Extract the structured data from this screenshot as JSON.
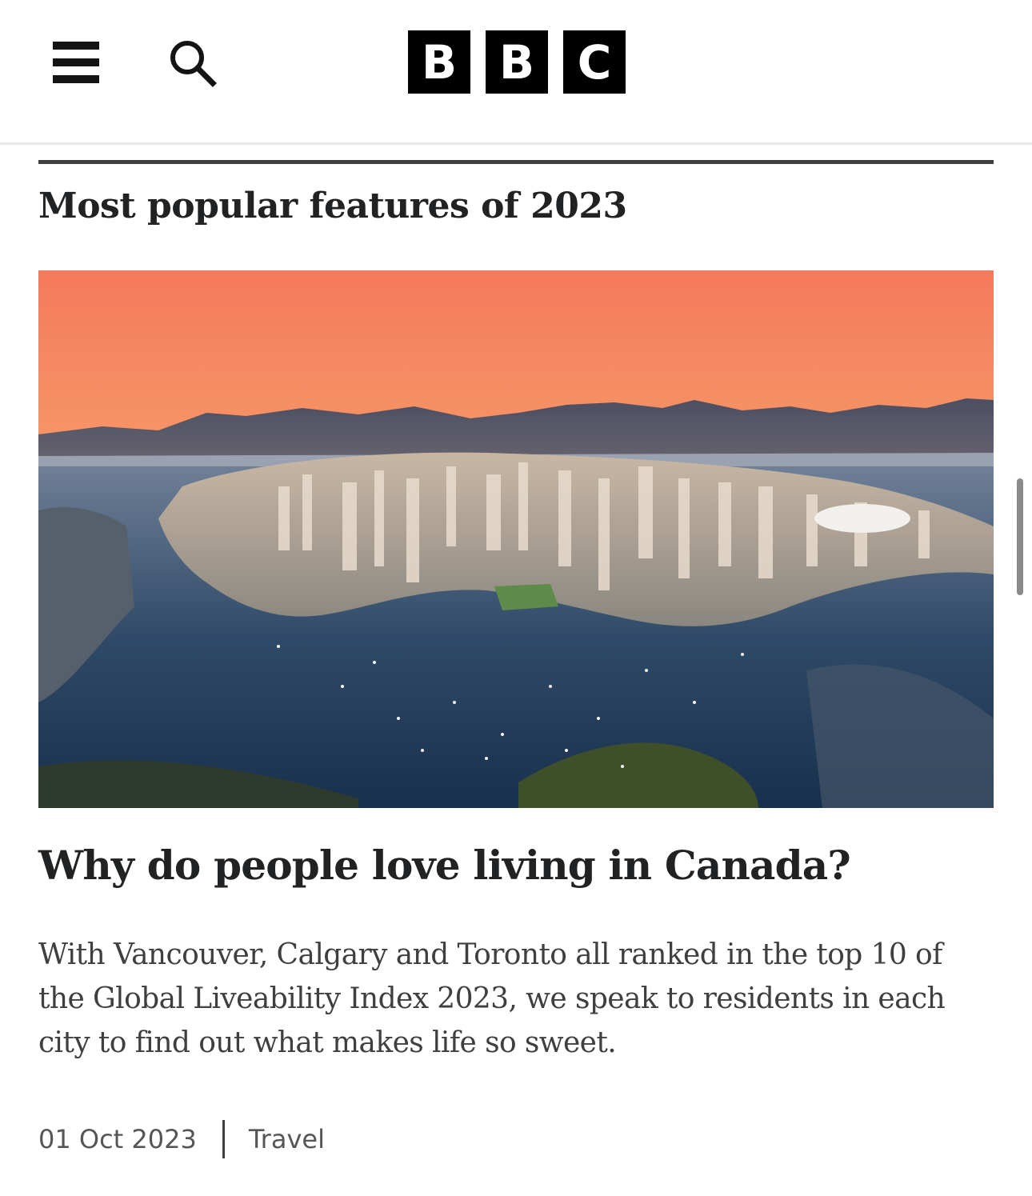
{
  "header": {
    "menu_icon": "hamburger-menu-icon",
    "search_icon": "search-icon",
    "logo_letters": [
      "B",
      "B",
      "C"
    ]
  },
  "section": {
    "title": "Most popular features of 2023"
  },
  "article": {
    "image_description_icon": "vancouver-aerial-photo",
    "title": "Why do people love living in Canada?",
    "summary": "With Vancouver, Calgary and Toronto all ranked in the top 10 of the Global Liveability Index 2023, we speak to residents in each city to find out what makes life so sweet.",
    "date": "01 Oct 2023",
    "topic": "Travel"
  },
  "colors": {
    "logo_bg": "#000000",
    "text": "#202224",
    "muted": "#545658",
    "rule": "#3f3f42"
  }
}
